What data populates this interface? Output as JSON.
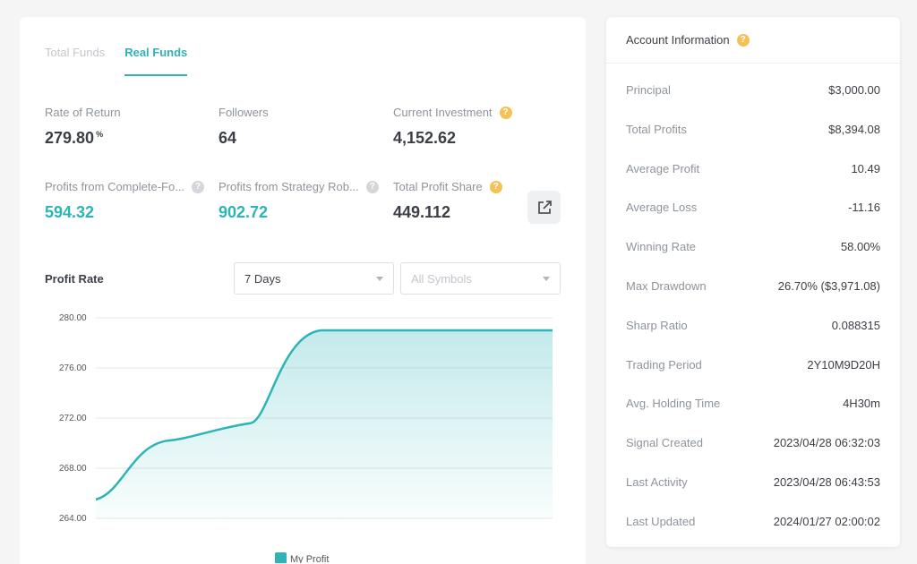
{
  "tabs": [
    {
      "label": "Total Funds",
      "active": false
    },
    {
      "label": "Real Funds",
      "active": true
    }
  ],
  "stats": {
    "rate_of_return": {
      "label": "Rate of Return",
      "value": "279.80",
      "unit": "%"
    },
    "followers": {
      "label": "Followers",
      "value": "64"
    },
    "current_investment": {
      "label": "Current Investment",
      "value": "4,152.62"
    },
    "profits_complete": {
      "label": "Profits from Complete-Fo...",
      "value": "594.32"
    },
    "profits_strategy": {
      "label": "Profits from Strategy Rob...",
      "value": "902.72"
    },
    "total_profit_share": {
      "label": "Total Profit Share",
      "value": "449.112"
    }
  },
  "chart_section": {
    "title": "Profit Rate",
    "period_select": "7 Days",
    "symbols_select": "All Symbols"
  },
  "chart_data": {
    "type": "area",
    "ylim": [
      264,
      280
    ],
    "y_ticks": [
      "280.00",
      "276.00",
      "272.00",
      "268.00",
      "264.00"
    ],
    "series": [
      {
        "name": "My Profit",
        "color": "#2cb4b6",
        "values": [
          265.5,
          270.2,
          271.6,
          279.0,
          279.0
        ]
      }
    ],
    "legend": "bottom",
    "grid": true
  },
  "account": {
    "title": "Account Information",
    "rows": [
      {
        "label": "Principal",
        "value": "$3,000.00"
      },
      {
        "label": "Total Profits",
        "value": "$8,394.08"
      },
      {
        "label": "Average Profit",
        "value": "10.49"
      },
      {
        "label": "Average Loss",
        "value": "-11.16"
      },
      {
        "label": "Winning Rate",
        "value": "58.00%"
      },
      {
        "label": "Max Drawdown",
        "value": "26.70% ($3,971.08)"
      },
      {
        "label": "Sharp Ratio",
        "value": "0.088315"
      },
      {
        "label": "Trading Period",
        "value": "2Y10M9D20H"
      },
      {
        "label": "Avg. Holding Time",
        "value": "4H30m"
      },
      {
        "label": "Signal Created",
        "value": "2023/04/28 06:32:03"
      },
      {
        "label": "Last Activity",
        "value": "2023/04/28 06:43:53"
      },
      {
        "label": "Last Updated",
        "value": "2024/01/27 02:00:02"
      }
    ]
  },
  "colors": {
    "accent": "#2cb4b6",
    "help": "#f4c254"
  }
}
